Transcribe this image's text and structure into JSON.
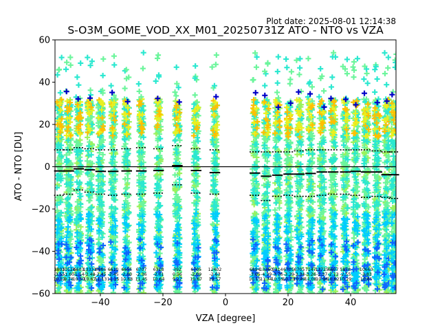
{
  "plot_date": "Plot date: 2025-08-01 12:14:38",
  "chart_data": {
    "type": "scatter",
    "title": "S-O3M_GOME_VOD_XX_M01_20250731Z ATO - NTO vs VZA",
    "xlabel": "VZA [degree]",
    "ylabel": "ATO - NTO [DU]",
    "xlim": [
      -54.5,
      54.5
    ],
    "ylim": [
      -60,
      60
    ],
    "xticks": [
      -40,
      -20,
      0,
      20,
      40
    ],
    "yticks": [
      -60,
      -40,
      -20,
      0,
      20,
      40,
      60
    ],
    "xtick_labels": [
      "−40",
      "−20",
      "0",
      "20",
      "40"
    ],
    "ytick_labels": [
      "−60",
      "−40",
      "−20",
      "0",
      "20",
      "40",
      "60"
    ],
    "zero_line": 0,
    "colors": {
      "main": "#6cf59c",
      "teal": "#2be8d0",
      "cyan": "#00ccff",
      "blue": "#0f66ff",
      "deep_blue": "#0000c8",
      "yellow": "#e9f020",
      "orange": "#ffc000",
      "green": "#9af25c"
    },
    "series": [
      {
        "columns": [
          {
            "x": -53.1,
            "mean": -2.0,
            "std_upper": 8.0,
            "std_lower": -13.5,
            "n": "3803",
            "mean_label": "-3.55",
            "std_label": "10.52"
          },
          {
            "x": -50.1,
            "mean": -2.0,
            "std_upper": 8.0,
            "std_lower": -13.0,
            "n": "10120",
            "mean_label": "-1.60",
            "std_label": "9.78"
          },
          {
            "x": -46.9,
            "mean": -1.0,
            "std_upper": 9.0,
            "std_lower": -11.0,
            "n": "6603",
            "mean_label": "-1.14",
            "std_label": "10.50"
          },
          {
            "x": -43.4,
            "mean": -1.5,
            "std_upper": 8.5,
            "std_lower": -12.0,
            "n": "13331",
            "mean_label": "-2.48",
            "std_label": "10.67"
          },
          {
            "x": -39.9,
            "mean": -2.2,
            "std_upper": 8.0,
            "std_lower": -13.0,
            "n": "6686",
            "mean_label": "-2.45",
            "std_label": "11.13"
          },
          {
            "x": -35.9,
            "mean": -2.2,
            "std_upper": 8.0,
            "std_lower": -13.5,
            "n": "6610",
            "mean_label": "-2.45",
            "std_label": "11.15"
          },
          {
            "x": -31.6,
            "mean": -2.0,
            "std_upper": 8.5,
            "std_lower": -13.0,
            "n": "6655",
            "mean_label": "-2.00",
            "std_label": "10.88"
          },
          {
            "x": -26.9,
            "mean": -2.0,
            "std_upper": 9.0,
            "std_lower": -13.0,
            "n": "6707",
            "mean_label": "-2.36",
            "std_label": "11.45"
          },
          {
            "x": -21.4,
            "mean": -1.8,
            "std_upper": 8.5,
            "std_lower": -12.5,
            "n": "6318",
            "mean_label": "-2.01",
            "std_label": "10.64"
          },
          {
            "x": -15.4,
            "mean": 0.5,
            "std_upper": 10.0,
            "std_lower": -8.5,
            "n": "392",
            "mean_label": "0.56",
            "std_label": "9.27"
          },
          {
            "x": -9.4,
            "mean": -1.8,
            "std_upper": 8.5,
            "std_lower": -12.5,
            "n": "6705",
            "mean_label": "-2.09",
            "std_label": "10.67"
          },
          {
            "x": -3.4,
            "mean": -2.8,
            "std_upper": 8.0,
            "std_lower": -13.0,
            "n": "12402",
            "mean_label": "-2.63",
            "std_label": "10.57"
          },
          {
            "x": 9.4,
            "mean": -3.0,
            "std_upper": 7.0,
            "std_lower": -13.5,
            "n": "6694",
            "mean_label": "-3.05",
            "std_label": "10.15"
          },
          {
            "x": 13.0,
            "mean": -4.5,
            "std_upper": 7.0,
            "std_lower": -16.0,
            "n": "13360",
            "mean_label": "-4.39",
            "std_label": "11.74"
          },
          {
            "x": 16.6,
            "mean": -4.0,
            "std_upper": 7.0,
            "std_lower": -14.0,
            "n": "5314",
            "mean_label": "-3.76",
            "std_label": "10.59"
          },
          {
            "x": 20.2,
            "mean": -3.5,
            "std_upper": 7.0,
            "std_lower": -13.5,
            "n": "6705",
            "mean_label": "-3.39",
            "std_label": "10.13"
          },
          {
            "x": 23.6,
            "mean": -3.5,
            "std_upper": 7.5,
            "std_lower": -14.0,
            "n": "6705",
            "mean_label": "-3.34",
            "std_label": "10.49"
          },
          {
            "x": 27.2,
            "mean": -3.2,
            "std_upper": 8.0,
            "std_lower": -14.0,
            "n": "7147",
            "mean_label": "-3.26",
            "std_label": "11.08"
          },
          {
            "x": 30.8,
            "mean": -2.5,
            "std_upper": 8.0,
            "std_lower": -13.5,
            "n": "13725",
            "mean_label": "-2.37",
            "std_label": "10.98"
          },
          {
            "x": 34.4,
            "mean": -2.5,
            "std_upper": 8.0,
            "std_lower": -13.0,
            "n": "6607",
            "mean_label": "-2.13",
            "std_label": "10.62"
          },
          {
            "x": 38.3,
            "mean": -2.5,
            "std_upper": 8.0,
            "std_lower": -13.0,
            "n": "5878",
            "mean_label": "-2.55",
            "std_label": "10.29"
          },
          {
            "x": 41.6,
            "mean": -2.2,
            "std_upper": 8.0,
            "std_lower": -13.5,
            "n": "",
            "mean_label": "",
            "std_label": ""
          },
          {
            "x": 45.0,
            "mean": -2.5,
            "std_upper": 8.0,
            "std_lower": -14.5,
            "n": "10660",
            "mean_label": "-3.83",
            "std_label": "10.85"
          },
          {
            "x": 48.4,
            "mean": -2.5,
            "std_upper": 7.5,
            "std_lower": -14.0,
            "n": "",
            "mean_label": "",
            "std_label": ""
          },
          {
            "x": 51.5,
            "mean": -3.8,
            "std_upper": 7.0,
            "std_lower": -14.5,
            "n": "",
            "mean_label": "",
            "std_label": ""
          },
          {
            "x": 53.8,
            "mean": -3.8,
            "std_upper": 7.0,
            "std_lower": -15.0,
            "n": "",
            "mean_label": "",
            "std_label": ""
          }
        ]
      }
    ]
  }
}
